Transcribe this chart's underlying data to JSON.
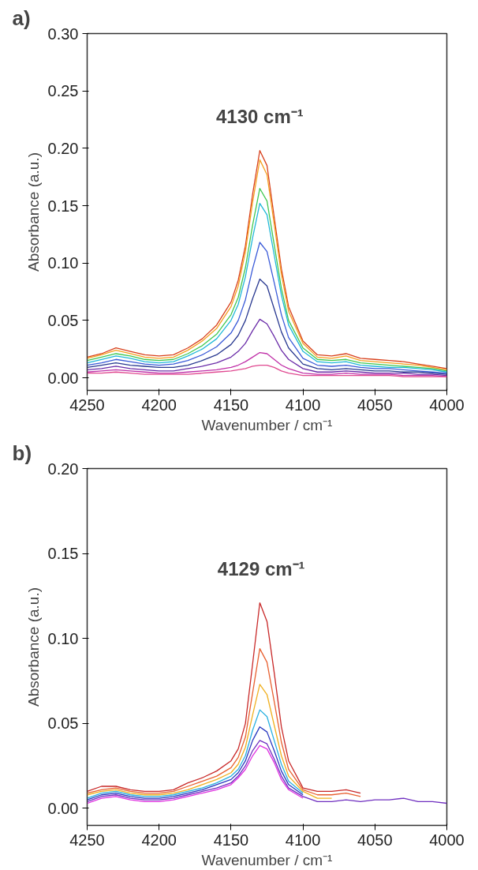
{
  "chart_data": [
    {
      "type": "line",
      "title": "a)",
      "xlabel": "Wavenumber / cm⁻¹",
      "ylabel": "Absorbance (a.u.)",
      "x": [
        4250,
        4240,
        4230,
        4220,
        4210,
        4200,
        4190,
        4180,
        4170,
        4160,
        4150,
        4145,
        4140,
        4135,
        4130,
        4125,
        4120,
        4115,
        4110,
        4100,
        4090,
        4080,
        4070,
        4060,
        4050,
        4040,
        4030,
        4020,
        4010,
        4000
      ],
      "xlim": [
        4250,
        4000
      ],
      "xticks": [
        4250,
        4200,
        4150,
        4100,
        4050,
        4000
      ],
      "ylim": [
        -0.011,
        0.3
      ],
      "yticks": [
        {
          "value": 0,
          "label": "0.00"
        },
        {
          "value": 0.05,
          "label": "0.05"
        },
        {
          "value": 0.1,
          "label": "0.10"
        },
        {
          "value": 0.15,
          "label": "0.15"
        },
        {
          "value": 0.2,
          "label": "0.20"
        },
        {
          "value": 0.25,
          "label": "0.25"
        },
        {
          "value": 0.3,
          "label": "0.30"
        }
      ],
      "annotations": [
        {
          "text": "4130 cm⁻¹",
          "x": 4130,
          "y": 0.198
        }
      ],
      "series": [
        {
          "color": "#d8401c",
          "values": [
            0.018,
            0.021,
            0.026,
            0.023,
            0.02,
            0.019,
            0.02,
            0.026,
            0.034,
            0.046,
            0.066,
            0.085,
            0.115,
            0.16,
            0.198,
            0.185,
            0.14,
            0.095,
            0.062,
            0.032,
            0.02,
            0.019,
            0.021,
            0.017,
            0.016,
            0.015,
            0.014,
            0.012,
            0.01,
            0.008
          ]
        },
        {
          "color": "#f5a020",
          "values": [
            0.017,
            0.02,
            0.024,
            0.021,
            0.018,
            0.017,
            0.018,
            0.024,
            0.032,
            0.043,
            0.062,
            0.08,
            0.11,
            0.153,
            0.19,
            0.177,
            0.134,
            0.09,
            0.058,
            0.03,
            0.018,
            0.017,
            0.019,
            0.015,
            0.014,
            0.013,
            0.012,
            0.011,
            0.009,
            0.007
          ]
        },
        {
          "color": "#40c850",
          "values": [
            0.015,
            0.018,
            0.021,
            0.019,
            0.016,
            0.015,
            0.016,
            0.021,
            0.028,
            0.038,
            0.055,
            0.07,
            0.096,
            0.133,
            0.165,
            0.154,
            0.116,
            0.078,
            0.05,
            0.026,
            0.016,
            0.015,
            0.016,
            0.013,
            0.012,
            0.011,
            0.01,
            0.009,
            0.008,
            0.006
          ]
        },
        {
          "color": "#20b8d8",
          "values": [
            0.013,
            0.016,
            0.019,
            0.017,
            0.014,
            0.013,
            0.014,
            0.019,
            0.025,
            0.034,
            0.05,
            0.064,
            0.088,
            0.122,
            0.152,
            0.142,
            0.107,
            0.072,
            0.046,
            0.023,
            0.014,
            0.013,
            0.014,
            0.011,
            0.01,
            0.009,
            0.009,
            0.008,
            0.007,
            0.005
          ]
        },
        {
          "color": "#3a5ad8",
          "values": [
            0.011,
            0.013,
            0.016,
            0.014,
            0.012,
            0.011,
            0.012,
            0.015,
            0.02,
            0.027,
            0.039,
            0.05,
            0.068,
            0.095,
            0.118,
            0.11,
            0.083,
            0.055,
            0.035,
            0.017,
            0.011,
            0.01,
            0.011,
            0.009,
            0.008,
            0.008,
            0.007,
            0.006,
            0.005,
            0.004
          ]
        },
        {
          "color": "#283890",
          "values": [
            0.009,
            0.011,
            0.013,
            0.011,
            0.01,
            0.009,
            0.009,
            0.011,
            0.015,
            0.02,
            0.029,
            0.037,
            0.05,
            0.069,
            0.086,
            0.08,
            0.06,
            0.04,
            0.026,
            0.012,
            0.008,
            0.007,
            0.008,
            0.007,
            0.006,
            0.006,
            0.005,
            0.005,
            0.004,
            0.003
          ]
        },
        {
          "color": "#6a2ca8",
          "values": [
            0.007,
            0.008,
            0.01,
            0.008,
            0.007,
            0.006,
            0.006,
            0.008,
            0.01,
            0.013,
            0.018,
            0.023,
            0.03,
            0.041,
            0.051,
            0.047,
            0.036,
            0.024,
            0.016,
            0.008,
            0.005,
            0.005,
            0.006,
            0.005,
            0.004,
            0.004,
            0.004,
            0.003,
            0.003,
            0.002
          ]
        },
        {
          "color": "#c030a8",
          "values": [
            0.005,
            0.006,
            0.007,
            0.006,
            0.005,
            0.004,
            0.004,
            0.005,
            0.006,
            0.007,
            0.009,
            0.011,
            0.014,
            0.018,
            0.022,
            0.021,
            0.016,
            0.011,
            0.008,
            0.004,
            0.003,
            0.003,
            0.004,
            0.003,
            0.003,
            0.003,
            0.002,
            0.002,
            0.002,
            0.001
          ]
        },
        {
          "color": "#e04890",
          "values": [
            0.004,
            0.004,
            0.005,
            0.004,
            0.003,
            0.003,
            0.003,
            0.003,
            0.004,
            0.005,
            0.006,
            0.007,
            0.008,
            0.01,
            0.011,
            0.011,
            0.009,
            0.006,
            0.004,
            0.002,
            0.002,
            0.002,
            0.002,
            0.002,
            0.002,
            0.002,
            0.001,
            0.001,
            0.001,
            0.001
          ]
        }
      ]
    },
    {
      "type": "line",
      "title": "b)",
      "xlabel": "Wavenumber / cm⁻¹",
      "ylabel": "Absorbance (a.u.)",
      "x": [
        4250,
        4240,
        4230,
        4220,
        4210,
        4200,
        4190,
        4180,
        4170,
        4160,
        4150,
        4145,
        4140,
        4135,
        4130,
        4125,
        4120,
        4115,
        4110,
        4100,
        4090,
        4080,
        4070,
        4060,
        4050,
        4040,
        4030,
        4020,
        4010,
        4000
      ],
      "xlim": [
        4250,
        4000
      ],
      "xticks": [
        4250,
        4200,
        4150,
        4100,
        4050,
        4000
      ],
      "ylim": [
        -0.01,
        0.2
      ],
      "yticks": [
        {
          "value": 0,
          "label": "0.00"
        },
        {
          "value": 0.05,
          "label": "0.05"
        },
        {
          "value": 0.1,
          "label": "0.10"
        },
        {
          "value": 0.15,
          "label": "0.15"
        },
        {
          "value": 0.2,
          "label": "0.20"
        }
      ],
      "annotations": [
        {
          "text": "4129 cm⁻¹",
          "x": 4129,
          "y": 0.121
        }
      ],
      "series": [
        {
          "color": "#c82828",
          "values": [
            0.01,
            0.013,
            0.013,
            0.011,
            0.01,
            0.01,
            0.011,
            0.015,
            0.018,
            0.022,
            0.028,
            0.035,
            0.05,
            0.085,
            0.121,
            0.11,
            0.08,
            0.048,
            0.028,
            0.012,
            0.01,
            0.01,
            0.011,
            0.009,
            null,
            null,
            null,
            null,
            null,
            null
          ]
        },
        {
          "color": "#e86030",
          "values": [
            0.009,
            0.011,
            0.012,
            0.01,
            0.009,
            0.009,
            0.01,
            0.013,
            0.016,
            0.019,
            0.024,
            0.03,
            0.042,
            0.068,
            0.094,
            0.086,
            0.063,
            0.039,
            0.023,
            0.011,
            0.008,
            0.008,
            0.009,
            0.007,
            null,
            null,
            null,
            null,
            null,
            null
          ]
        },
        {
          "color": "#f0b020",
          "values": [
            0.008,
            0.01,
            0.011,
            0.009,
            0.008,
            0.008,
            0.009,
            0.011,
            0.014,
            0.017,
            0.021,
            0.026,
            0.036,
            0.055,
            0.073,
            0.067,
            0.049,
            0.031,
            0.019,
            0.01,
            0.006,
            0.006,
            null,
            null,
            null,
            null,
            null,
            null,
            null,
            null
          ]
        },
        {
          "color": "#28b0e0",
          "values": [
            0.006,
            0.009,
            0.01,
            0.008,
            0.007,
            0.007,
            0.008,
            0.01,
            0.012,
            0.015,
            0.019,
            0.023,
            0.031,
            0.046,
            0.058,
            0.054,
            0.04,
            0.026,
            0.016,
            0.009,
            null,
            null,
            null,
            null,
            null,
            null,
            null,
            null,
            null,
            null
          ]
        },
        {
          "color": "#2838c0",
          "values": [
            0.005,
            0.008,
            0.009,
            0.007,
            0.006,
            0.006,
            0.007,
            0.009,
            0.011,
            0.014,
            0.017,
            0.021,
            0.028,
            0.04,
            0.048,
            0.045,
            0.034,
            0.022,
            0.014,
            0.008,
            null,
            null,
            null,
            null,
            null,
            null,
            null,
            null,
            null,
            null
          ]
        },
        {
          "color": "#7030c0",
          "values": [
            0.004,
            0.007,
            0.008,
            0.006,
            0.005,
            0.005,
            0.006,
            0.008,
            0.01,
            0.012,
            0.015,
            0.019,
            0.025,
            0.034,
            0.04,
            0.038,
            0.029,
            0.019,
            0.012,
            0.007,
            0.004,
            0.004,
            0.005,
            0.004,
            0.005,
            0.005,
            0.006,
            0.004,
            0.004,
            0.003
          ]
        },
        {
          "color": "#e030e0",
          "values": [
            0.003,
            0.006,
            0.007,
            0.005,
            0.004,
            0.004,
            0.005,
            0.007,
            0.009,
            0.011,
            0.014,
            0.018,
            0.023,
            0.031,
            0.037,
            0.035,
            0.027,
            0.017,
            0.011,
            0.006,
            null,
            null,
            null,
            null,
            null,
            null,
            null,
            null,
            null,
            null
          ]
        }
      ]
    }
  ]
}
